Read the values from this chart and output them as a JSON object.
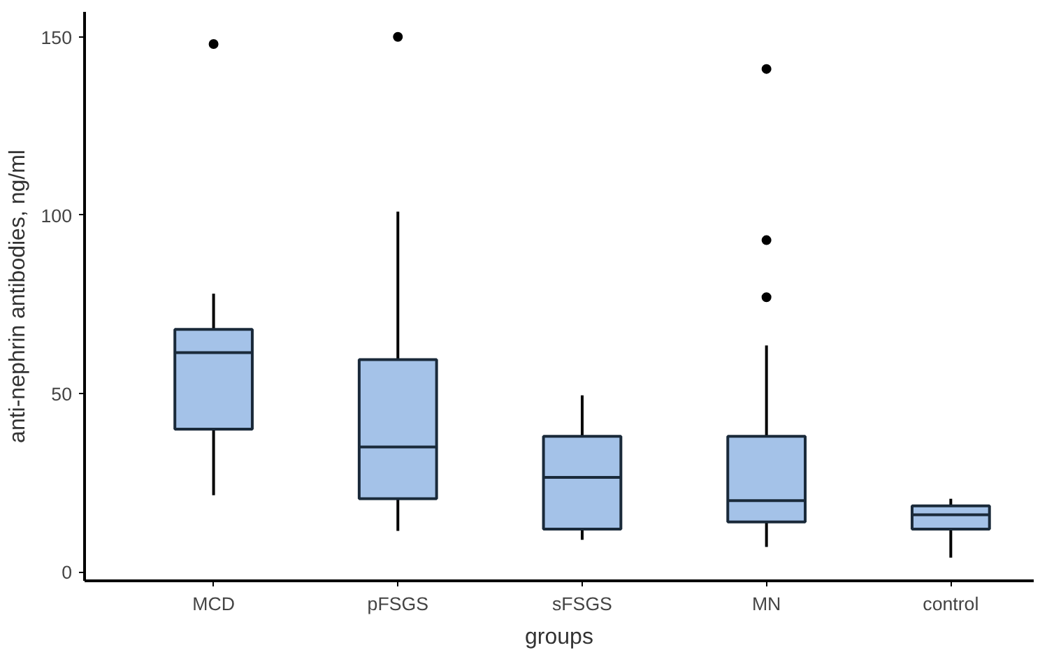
{
  "chart_data": {
    "type": "box",
    "xlabel": "groups",
    "ylabel": "anti-nephrin antibodies, ng/ml",
    "categories": [
      "MCD",
      "pFSGS",
      "sFSGS",
      "MN",
      "control"
    ],
    "ylim": [
      -2.5,
      157
    ],
    "yticks": [
      0,
      50,
      100,
      150
    ],
    "grid": false,
    "series": [
      {
        "color": "#a4c2e8",
        "boxes": [
          {
            "low": 21.5,
            "q1": 40,
            "median": 61.5,
            "q3": 68,
            "high": 78,
            "outliers": [
              148
            ]
          },
          {
            "low": 11.5,
            "q1": 20.5,
            "median": 35,
            "q3": 59.5,
            "high": 101,
            "outliers": [
              150
            ]
          },
          {
            "low": 9,
            "q1": 12,
            "median": 26.5,
            "q3": 38,
            "high": 49.5
          },
          {
            "low": 7,
            "q1": 14,
            "median": 20,
            "q3": 38,
            "high": 63.5,
            "outliers": [
              141,
              93,
              77
            ]
          },
          {
            "low": 4,
            "q1": 12,
            "median": 16,
            "q3": 18.5,
            "high": 20.5
          }
        ]
      }
    ]
  }
}
